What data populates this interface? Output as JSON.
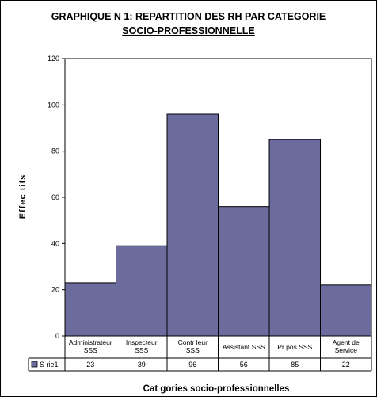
{
  "chart_data": {
    "type": "bar",
    "title": "GRAPHIQUE N   1: REPARTITION DES RH PAR CATEGORIE\nSOCIO-PROFESSIONNELLE",
    "xlabel": "Cat  gories socio-professionnelles",
    "ylabel": "Effec tifs",
    "ylim": [
      0,
      120
    ],
    "yticks": [
      0,
      20,
      40,
      60,
      80,
      100,
      120
    ],
    "grid": false,
    "categories": [
      [
        "Administrateur",
        "SSS"
      ],
      [
        "Inspecteur",
        "SSS"
      ],
      [
        "Contr  leur",
        "SSS"
      ],
      [
        "Assistant SSS"
      ],
      [
        "Pr  pos   SSS"
      ],
      [
        "Agent de",
        "Service"
      ]
    ],
    "series": [
      {
        "name": "S  rie1",
        "values": [
          23,
          39,
          96,
          56,
          85,
          22
        ],
        "color": "#6b6b9e"
      }
    ],
    "data_table": true,
    "legend": "data-table"
  }
}
